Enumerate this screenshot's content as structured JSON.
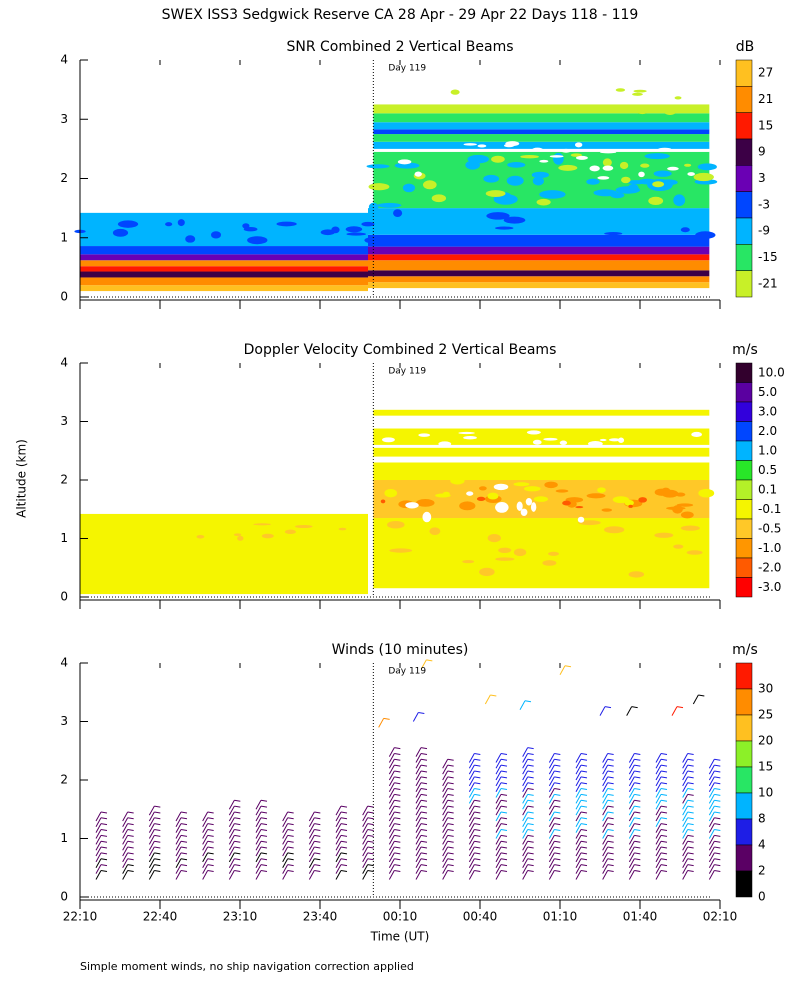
{
  "title": "SWEX ISS3 Sedgwick Reserve CA  28 Apr - 29 Apr 22 Days 118 - 119",
  "note": "Simple moment winds, no ship navigation correction applied",
  "chart_data": [
    {
      "type": "contour",
      "title": "SNR Combined 2 Vertical Beams",
      "day_label": "Day 119",
      "day_boundary": "00:00",
      "ylim": [
        0,
        4
      ],
      "yticks": [
        0,
        1,
        2,
        3,
        4
      ],
      "colorbar": {
        "unit": "dB",
        "label_position": "center",
        "levels": [
          {
            "value": 27,
            "color": "#ffc020"
          },
          {
            "value": 21,
            "color": "#ff8c00"
          },
          {
            "value": 15,
            "color": "#ff1a00"
          },
          {
            "value": 9,
            "color": "#3c0046"
          },
          {
            "value": 3,
            "color": "#6a00b4"
          },
          {
            "value": -3,
            "color": "#0046ff"
          },
          {
            "value": -9,
            "color": "#00b4ff"
          },
          {
            "value": -15,
            "color": "#28e664"
          },
          {
            "value": -21,
            "color": "#c8f028"
          }
        ]
      }
    },
    {
      "type": "contour",
      "title": "Doppler Velocity Combined 2 Vertical Beams",
      "day_label": "Day 119",
      "day_boundary": "00:00",
      "y_label": "Altitude (km)",
      "ylim": [
        0,
        4
      ],
      "yticks": [
        0,
        1,
        2,
        3,
        4
      ],
      "colorbar": {
        "unit": "m/s",
        "label_position": "center",
        "levels": [
          {
            "value": 10,
            "label": "10.0",
            "color": "#32002d"
          },
          {
            "value": 5,
            "label": "5.0",
            "color": "#5a00a0"
          },
          {
            "value": 3,
            "label": "3.0",
            "color": "#3200dc"
          },
          {
            "value": 2,
            "label": "2.0",
            "color": "#0046ff"
          },
          {
            "value": 1,
            "label": "1.0",
            "color": "#00b4ff"
          },
          {
            "value": 0.5,
            "label": "0.5",
            "color": "#28e628"
          },
          {
            "value": 0.1,
            "label": "0.1",
            "color": "#b4f028"
          },
          {
            "value": -0.1,
            "label": "-0.1",
            "color": "#f5f500"
          },
          {
            "value": -0.5,
            "label": "-0.5",
            "color": "#ffc828"
          },
          {
            "value": -1,
            "label": "-1.0",
            "color": "#ff9600"
          },
          {
            "value": -2,
            "label": "-2.0",
            "color": "#ff5a00"
          },
          {
            "value": -3,
            "label": "-3.0",
            "color": "#ff0000"
          }
        ]
      }
    },
    {
      "type": "barbs",
      "title": "Winds (10 minutes)",
      "day_label": "Day 119",
      "day_boundary": "00:00",
      "x_label": "Time (UT)",
      "ylim": [
        0,
        4
      ],
      "yticks": [
        0,
        1,
        2,
        3,
        4
      ],
      "xlim": [
        "22:10",
        "02:10"
      ],
      "xticks": [
        "22:10",
        "22:40",
        "23:10",
        "23:40",
        "00:10",
        "00:40",
        "01:10",
        "01:40",
        "02:10"
      ],
      "colorbar": {
        "unit": "m/s",
        "label_position": "edge",
        "levels": [
          {
            "value": 30,
            "color": "#ff1a00"
          },
          {
            "value": 25,
            "color": "#ff8c00"
          },
          {
            "value": 20,
            "color": "#ffc020"
          },
          {
            "value": 15,
            "color": "#8cf028"
          },
          {
            "value": 10,
            "color": "#28e664"
          },
          {
            "value": 8,
            "color": "#00b4ff"
          },
          {
            "value": 4,
            "color": "#1e1ee6"
          },
          {
            "value": 2,
            "color": "#5a0064"
          },
          {
            "value": 0,
            "color": "#000000"
          }
        ]
      }
    }
  ]
}
